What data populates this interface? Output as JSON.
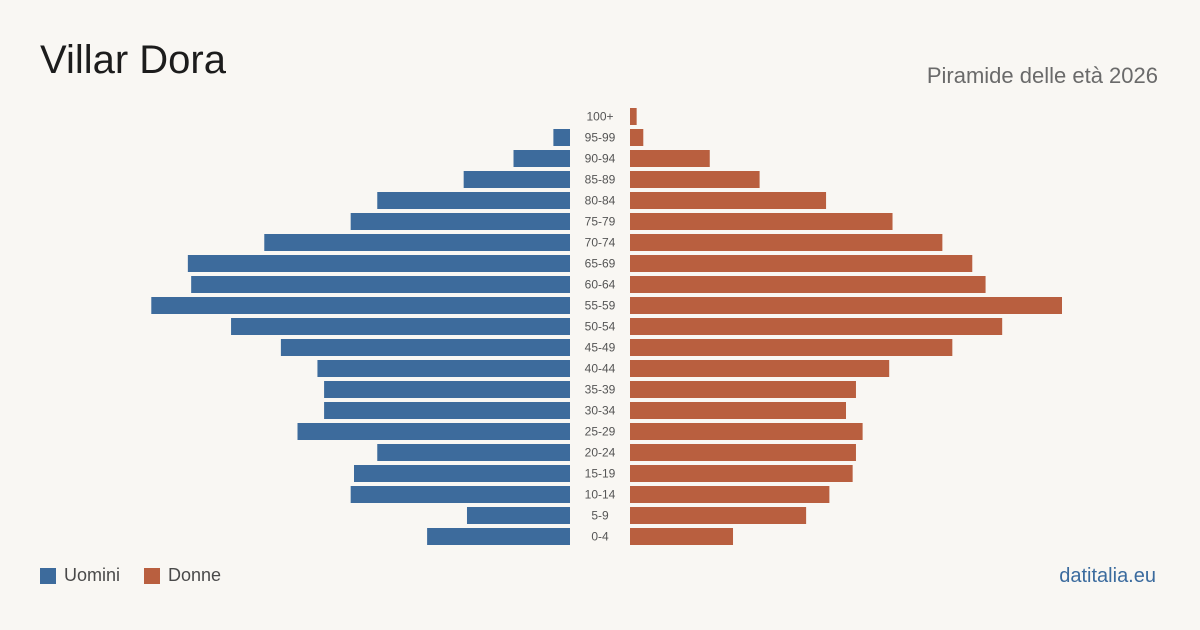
{
  "header": {
    "title": "Villar Dora",
    "subtitle": "Piramide delle età 2026"
  },
  "legend": {
    "men_label": "Uomini",
    "women_label": "Donne"
  },
  "brand": "datitalia.eu",
  "colors": {
    "men": "#3d6b9c",
    "women": "#b95f3f",
    "background": "#f9f7f3",
    "tick_text": "#555555"
  },
  "chart_data": {
    "type": "bar",
    "orientation": "horizontal-pyramid",
    "categories": [
      "100+",
      "95-99",
      "90-94",
      "85-89",
      "80-84",
      "75-79",
      "70-74",
      "65-69",
      "60-64",
      "55-59",
      "50-54",
      "45-49",
      "40-44",
      "35-39",
      "30-34",
      "25-29",
      "20-24",
      "15-19",
      "10-14",
      "5-9",
      "0-4"
    ],
    "series": [
      {
        "name": "Uomini",
        "values": [
          0,
          5,
          17,
          32,
          58,
          66,
          92,
          115,
          114,
          126,
          102,
          87,
          76,
          74,
          74,
          82,
          58,
          65,
          66,
          31,
          43
        ]
      },
      {
        "name": "Donne",
        "values": [
          2,
          4,
          24,
          39,
          59,
          79,
          94,
          103,
          107,
          130,
          112,
          97,
          78,
          68,
          65,
          70,
          68,
          67,
          60,
          53,
          31
        ]
      }
    ],
    "xlim": [
      0,
      130
    ],
    "grid": false,
    "legend_position": "bottom-left"
  }
}
